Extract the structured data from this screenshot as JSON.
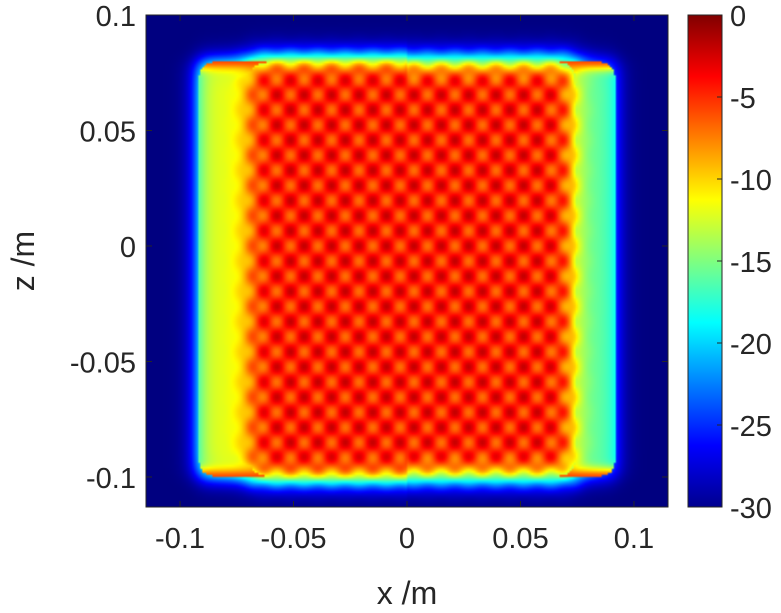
{
  "chart_data": {
    "type": "heatmap",
    "title": "",
    "xlabel": "x /m",
    "ylabel": "z /m",
    "xlim": [
      -0.115,
      0.115
    ],
    "ylim": [
      -0.113,
      0.1
    ],
    "x_ticks": [
      {
        "value": -0.1,
        "label": "-0.1"
      },
      {
        "value": -0.05,
        "label": "-0.05"
      },
      {
        "value": 0,
        "label": "0"
      },
      {
        "value": 0.05,
        "label": "0.05"
      },
      {
        "value": 0.1,
        "label": "0.1"
      }
    ],
    "y_ticks": [
      {
        "value": 0.1,
        "label": "0.1"
      },
      {
        "value": 0.05,
        "label": "0.05"
      },
      {
        "value": 0,
        "label": "0"
      },
      {
        "value": -0.05,
        "label": "-0.05"
      },
      {
        "value": -0.1,
        "label": "-0.1"
      }
    ],
    "colorbar": {
      "range": [
        -30,
        0
      ],
      "colormap": "jet",
      "ticks": [
        {
          "value": 0,
          "label": "0"
        },
        {
          "value": -5,
          "label": "-5"
        },
        {
          "value": -10,
          "label": "-10"
        },
        {
          "value": -15,
          "label": "-15"
        },
        {
          "value": -20,
          "label": "-20"
        },
        {
          "value": -25,
          "label": "-25"
        },
        {
          "value": -30,
          "label": "-30"
        }
      ]
    },
    "field": {
      "background_value": -30,
      "outer_region": {
        "x_range": [
          -0.092,
          0.092
        ],
        "z_range": [
          -0.1,
          0.08
        ],
        "edge_value": -21
      },
      "inner_region": {
        "x_range": [
          -0.07,
          0.075
        ],
        "z_range": [
          -0.1,
          0.08
        ],
        "value_min": -7,
        "value_max": -2
      },
      "left_band": {
        "x_range": [
          -0.092,
          -0.07
        ],
        "value": -12
      },
      "right_band": {
        "x_range": [
          0.075,
          0.092
        ],
        "value": -20
      }
    }
  }
}
